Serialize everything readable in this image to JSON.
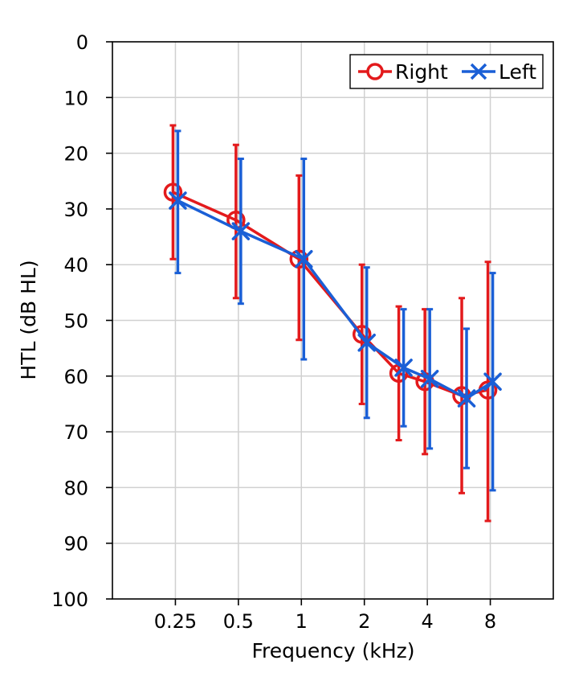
{
  "chart_data": {
    "type": "line",
    "xlabel": "Frequency (kHz)",
    "ylabel": "HTL (dB HL)",
    "x_scale": "log2",
    "x_ticks": [
      {
        "value": 0.25,
        "label": "0.25"
      },
      {
        "value": 0.5,
        "label": "0.5"
      },
      {
        "value": 1,
        "label": "1"
      },
      {
        "value": 2,
        "label": "2"
      },
      {
        "value": 4,
        "label": "4"
      },
      {
        "value": 8,
        "label": "8"
      }
    ],
    "xlim": [
      0.125,
      16
    ],
    "y_ticks": [
      "0",
      "10",
      "20",
      "30",
      "40",
      "50",
      "60",
      "70",
      "80",
      "90",
      "100"
    ],
    "ylim": [
      0,
      100
    ],
    "y_inverted": true,
    "grid": true,
    "legend_position": "top-right",
    "series": [
      {
        "name": "Right",
        "color": "#e31a1c",
        "marker": "circle",
        "points": [
          {
            "x": 0.25,
            "y": 27,
            "low": 15,
            "high": 39
          },
          {
            "x": 0.5,
            "y": 32,
            "low": 18.5,
            "high": 46
          },
          {
            "x": 1,
            "y": 39,
            "low": 24,
            "high": 53.5
          },
          {
            "x": 2,
            "y": 52.5,
            "low": 40,
            "high": 65
          },
          {
            "x": 3,
            "y": 59.5,
            "low": 47.5,
            "high": 71.5
          },
          {
            "x": 4,
            "y": 61,
            "low": 48,
            "high": 74
          },
          {
            "x": 6,
            "y": 63.5,
            "low": 46,
            "high": 81
          },
          {
            "x": 8,
            "y": 62.5,
            "low": 39.5,
            "high": 86
          }
        ]
      },
      {
        "name": "Left",
        "color": "#1a5fd6",
        "marker": "x",
        "points": [
          {
            "x": 0.25,
            "y": 28.5,
            "low": 16,
            "high": 41.5
          },
          {
            "x": 0.5,
            "y": 34,
            "low": 21,
            "high": 47
          },
          {
            "x": 1,
            "y": 39,
            "low": 21,
            "high": 57
          },
          {
            "x": 2,
            "y": 54,
            "low": 40.5,
            "high": 67.5
          },
          {
            "x": 3,
            "y": 58.5,
            "low": 48,
            "high": 69
          },
          {
            "x": 4,
            "y": 60.5,
            "low": 48,
            "high": 73
          },
          {
            "x": 6,
            "y": 64,
            "low": 51.5,
            "high": 76.5
          },
          {
            "x": 8,
            "y": 61,
            "low": 41.5,
            "high": 80.5
          }
        ]
      }
    ]
  }
}
